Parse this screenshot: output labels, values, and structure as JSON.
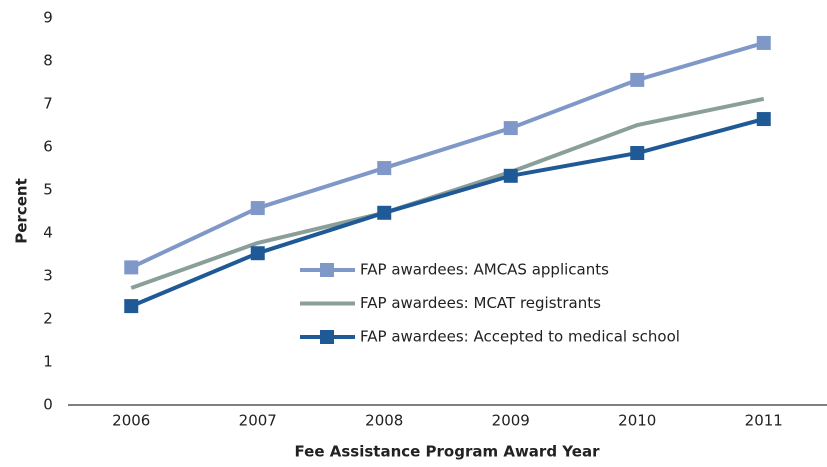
{
  "chart_data": {
    "type": "line",
    "x_label": "Fee Assistance Program Award Year",
    "y_label": "Percent",
    "categories": [
      "2006",
      "2007",
      "2008",
      "2009",
      "2010",
      "2011"
    ],
    "series": [
      {
        "name": "FAP awardees: AMCAS applicants",
        "color": "#7f98c8",
        "marker": "square",
        "values": [
          3.2,
          4.58,
          5.51,
          6.44,
          7.56,
          8.42
        ]
      },
      {
        "name": "FAP awardees: MCAT registrants",
        "color": "#8a9e9a",
        "marker": "none",
        "values": [
          2.72,
          3.77,
          4.47,
          5.42,
          6.51,
          7.12
        ]
      },
      {
        "name": "FAP awardees: Accepted to medical school",
        "color": "#1f5a96",
        "marker": "square",
        "values": [
          2.3,
          3.53,
          4.47,
          5.33,
          5.86,
          6.65
        ]
      }
    ],
    "ylim": [
      0,
      9
    ],
    "yticks": [
      0,
      1,
      2,
      3,
      4,
      5,
      6,
      7,
      8,
      9
    ],
    "grid": false
  }
}
